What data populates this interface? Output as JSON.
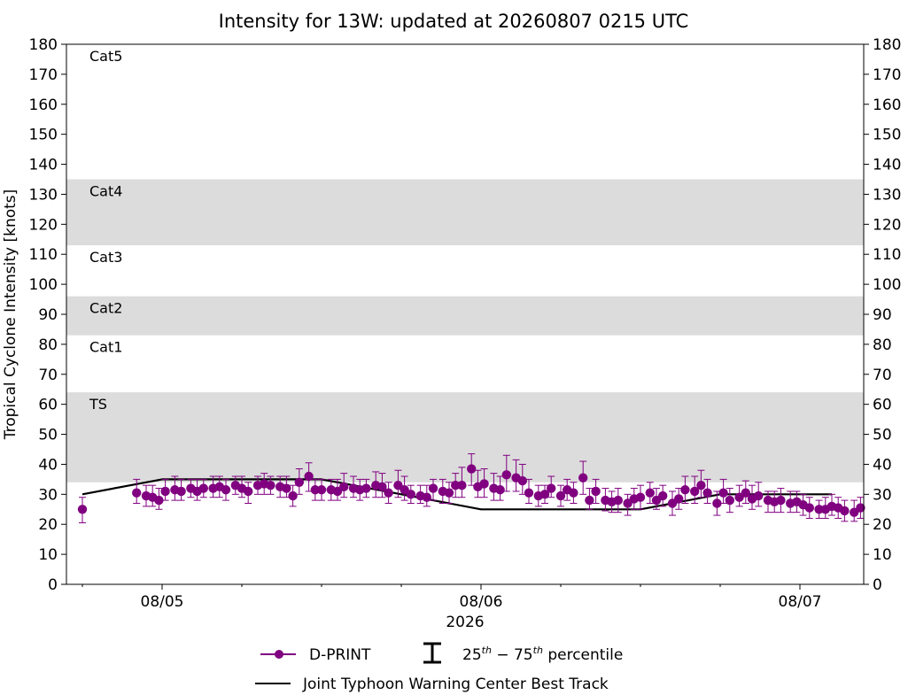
{
  "chart_data": {
    "type": "line",
    "title": "Intensity for 13W: updated at 20260807 0215 UTC",
    "xlabel": "2026",
    "ylabel": "Tropical Cyclone Intensity [knots]",
    "ylim": [
      0,
      180
    ],
    "yticks": [
      0,
      10,
      20,
      30,
      40,
      50,
      60,
      70,
      80,
      90,
      100,
      110,
      120,
      130,
      140,
      150,
      160,
      170,
      180
    ],
    "xlim_days": [
      -0.3,
      2.2
    ],
    "xticks": [
      {
        "pos": 0,
        "label": "08/05"
      },
      {
        "pos": 1,
        "label": "08/06"
      },
      {
        "pos": 2,
        "label": "08/07"
      }
    ],
    "x_unit": "days since 08/05 00:00 UTC",
    "minor_xticks": [
      -0.25,
      0.25,
      0.5,
      0.75,
      1.25,
      1.5,
      1.75,
      2.25
    ],
    "bands": [
      {
        "label": "TS",
        "from": 34,
        "to": 64,
        "shaded": true
      },
      {
        "label": "Cat1",
        "from": 64,
        "to": 83,
        "shaded": false
      },
      {
        "label": "Cat2",
        "from": 83,
        "to": 96,
        "shaded": true
      },
      {
        "label": "Cat3",
        "from": 96,
        "to": 113,
        "shaded": false
      },
      {
        "label": "Cat4",
        "from": 113,
        "to": 135,
        "shaded": true
      },
      {
        "label": "Cat5",
        "from": 135,
        "to": 180,
        "shaded": false
      }
    ],
    "band_color": "#dcdcdc",
    "series": [
      {
        "name": "D-PRINT",
        "color": "#800080",
        "marker": "circle",
        "points": [
          {
            "x": -0.25,
            "y": 25,
            "lo": 20.5,
            "hi": 29
          },
          {
            "x": -0.08,
            "y": 30.5,
            "lo": 27,
            "hi": 35
          },
          {
            "x": -0.05,
            "y": 29.5,
            "lo": 26,
            "hi": 33
          },
          {
            "x": -0.03,
            "y": 29,
            "lo": 26,
            "hi": 33
          },
          {
            "x": -0.01,
            "y": 28,
            "lo": 25,
            "hi": 32
          },
          {
            "x": 0.01,
            "y": 31,
            "lo": 28,
            "hi": 35
          },
          {
            "x": 0.04,
            "y": 31.5,
            "lo": 28,
            "hi": 36
          },
          {
            "x": 0.06,
            "y": 31,
            "lo": 28,
            "hi": 35
          },
          {
            "x": 0.09,
            "y": 32,
            "lo": 29,
            "hi": 35
          },
          {
            "x": 0.11,
            "y": 31,
            "lo": 28,
            "hi": 35
          },
          {
            "x": 0.13,
            "y": 32,
            "lo": 29,
            "hi": 35
          },
          {
            "x": 0.16,
            "y": 32,
            "lo": 29,
            "hi": 36
          },
          {
            "x": 0.18,
            "y": 32.5,
            "lo": 29,
            "hi": 36
          },
          {
            "x": 0.2,
            "y": 31.5,
            "lo": 28,
            "hi": 35
          },
          {
            "x": 0.23,
            "y": 33,
            "lo": 30,
            "hi": 36
          },
          {
            "x": 0.25,
            "y": 32,
            "lo": 29,
            "hi": 36
          },
          {
            "x": 0.27,
            "y": 31,
            "lo": 27,
            "hi": 34
          },
          {
            "x": 0.3,
            "y": 33,
            "lo": 30,
            "hi": 36
          },
          {
            "x": 0.32,
            "y": 33.5,
            "lo": 30,
            "hi": 37
          },
          {
            "x": 0.34,
            "y": 33,
            "lo": 30,
            "hi": 36
          },
          {
            "x": 0.37,
            "y": 32.5,
            "lo": 29,
            "hi": 36
          },
          {
            "x": 0.39,
            "y": 32,
            "lo": 29,
            "hi": 36
          },
          {
            "x": 0.41,
            "y": 29.5,
            "lo": 26,
            "hi": 33
          },
          {
            "x": 0.43,
            "y": 34,
            "lo": 30,
            "hi": 38.5
          },
          {
            "x": 0.46,
            "y": 36,
            "lo": 31,
            "hi": 40.5
          },
          {
            "x": 0.48,
            "y": 31.5,
            "lo": 28,
            "hi": 35
          },
          {
            "x": 0.5,
            "y": 31.5,
            "lo": 28,
            "hi": 35
          },
          {
            "x": 0.53,
            "y": 31.5,
            "lo": 28,
            "hi": 35
          },
          {
            "x": 0.55,
            "y": 31,
            "lo": 28,
            "hi": 35
          },
          {
            "x": 0.57,
            "y": 32.5,
            "lo": 29,
            "hi": 37
          },
          {
            "x": 0.6,
            "y": 32,
            "lo": 29,
            "hi": 36
          },
          {
            "x": 0.62,
            "y": 31.5,
            "lo": 28,
            "hi": 35
          },
          {
            "x": 0.64,
            "y": 32,
            "lo": 29,
            "hi": 35
          },
          {
            "x": 0.67,
            "y": 33,
            "lo": 29,
            "hi": 37.5
          },
          {
            "x": 0.69,
            "y": 32.5,
            "lo": 29,
            "hi": 37
          },
          {
            "x": 0.71,
            "y": 30.5,
            "lo": 27,
            "hi": 34
          },
          {
            "x": 0.74,
            "y": 33,
            "lo": 29,
            "hi": 38
          },
          {
            "x": 0.76,
            "y": 31.5,
            "lo": 28,
            "hi": 36
          },
          {
            "x": 0.78,
            "y": 30,
            "lo": 27,
            "hi": 33
          },
          {
            "x": 0.81,
            "y": 29.5,
            "lo": 27,
            "hi": 33
          },
          {
            "x": 0.83,
            "y": 29,
            "lo": 26,
            "hi": 33
          },
          {
            "x": 0.85,
            "y": 32,
            "lo": 28,
            "hi": 35
          },
          {
            "x": 0.88,
            "y": 31,
            "lo": 27,
            "hi": 35
          },
          {
            "x": 0.9,
            "y": 30.5,
            "lo": 27,
            "hi": 34
          },
          {
            "x": 0.92,
            "y": 33,
            "lo": 29,
            "hi": 37
          },
          {
            "x": 0.94,
            "y": 33,
            "lo": 29,
            "hi": 39
          },
          {
            "x": 0.97,
            "y": 38.5,
            "lo": 33,
            "hi": 43.5
          },
          {
            "x": 0.99,
            "y": 32.5,
            "lo": 29,
            "hi": 38
          },
          {
            "x": 1.01,
            "y": 33.5,
            "lo": 29,
            "hi": 38.5
          },
          {
            "x": 1.04,
            "y": 32,
            "lo": 28,
            "hi": 37
          },
          {
            "x": 1.06,
            "y": 31.5,
            "lo": 28,
            "hi": 36
          },
          {
            "x": 1.08,
            "y": 36.5,
            "lo": 31,
            "hi": 43
          },
          {
            "x": 1.11,
            "y": 35.5,
            "lo": 31,
            "hi": 41.5
          },
          {
            "x": 1.13,
            "y": 34.5,
            "lo": 30,
            "hi": 40
          },
          {
            "x": 1.15,
            "y": 30.5,
            "lo": 27,
            "hi": 35
          },
          {
            "x": 1.18,
            "y": 29.5,
            "lo": 26,
            "hi": 33
          },
          {
            "x": 1.2,
            "y": 30,
            "lo": 27,
            "hi": 33
          },
          {
            "x": 1.22,
            "y": 32,
            "lo": 29,
            "hi": 36
          },
          {
            "x": 1.25,
            "y": 29.5,
            "lo": 26,
            "hi": 33
          },
          {
            "x": 1.27,
            "y": 31.5,
            "lo": 28,
            "hi": 35
          },
          {
            "x": 1.29,
            "y": 30.5,
            "lo": 27,
            "hi": 34
          },
          {
            "x": 1.32,
            "y": 35.5,
            "lo": 30,
            "hi": 41
          },
          {
            "x": 1.34,
            "y": 28,
            "lo": 25,
            "hi": 32
          },
          {
            "x": 1.36,
            "y": 31,
            "lo": 27,
            "hi": 35
          },
          {
            "x": 1.39,
            "y": 28,
            "lo": 24.5,
            "hi": 32
          },
          {
            "x": 1.41,
            "y": 27.5,
            "lo": 24,
            "hi": 31
          },
          {
            "x": 1.43,
            "y": 28,
            "lo": 24,
            "hi": 32
          },
          {
            "x": 1.46,
            "y": 27,
            "lo": 23,
            "hi": 30
          },
          {
            "x": 1.48,
            "y": 28.5,
            "lo": 25,
            "hi": 32
          },
          {
            "x": 1.5,
            "y": 29,
            "lo": 25,
            "hi": 33
          },
          {
            "x": 1.53,
            "y": 30.5,
            "lo": 27,
            "hi": 34
          },
          {
            "x": 1.55,
            "y": 28,
            "lo": 25,
            "hi": 32
          },
          {
            "x": 1.57,
            "y": 29.5,
            "lo": 26,
            "hi": 33
          },
          {
            "x": 1.6,
            "y": 27,
            "lo": 23,
            "hi": 31
          },
          {
            "x": 1.62,
            "y": 28.5,
            "lo": 25,
            "hi": 32
          },
          {
            "x": 1.64,
            "y": 31.5,
            "lo": 27,
            "hi": 36
          },
          {
            "x": 1.67,
            "y": 31,
            "lo": 27,
            "hi": 36
          },
          {
            "x": 1.69,
            "y": 33,
            "lo": 29,
            "hi": 38
          },
          {
            "x": 1.71,
            "y": 30.5,
            "lo": 27,
            "hi": 35
          },
          {
            "x": 1.74,
            "y": 27,
            "lo": 23,
            "hi": 31
          },
          {
            "x": 1.76,
            "y": 30.5,
            "lo": 27,
            "hi": 35
          },
          {
            "x": 1.78,
            "y": 28,
            "lo": 24,
            "hi": 32
          },
          {
            "x": 1.81,
            "y": 29,
            "lo": 26,
            "hi": 33
          },
          {
            "x": 1.83,
            "y": 30.5,
            "lo": 27,
            "hi": 34.5
          },
          {
            "x": 1.85,
            "y": 28.5,
            "lo": 25,
            "hi": 33
          },
          {
            "x": 1.87,
            "y": 29.5,
            "lo": 26,
            "hi": 34
          },
          {
            "x": 1.9,
            "y": 28,
            "lo": 24,
            "hi": 31
          },
          {
            "x": 1.92,
            "y": 27.5,
            "lo": 24,
            "hi": 31
          },
          {
            "x": 1.94,
            "y": 28,
            "lo": 24,
            "hi": 32
          },
          {
            "x": 1.97,
            "y": 27,
            "lo": 24,
            "hi": 31
          },
          {
            "x": 1.99,
            "y": 27.5,
            "lo": 24,
            "hi": 31
          },
          {
            "x": 2.01,
            "y": 26.5,
            "lo": 23,
            "hi": 30
          },
          {
            "x": 2.03,
            "y": 25.5,
            "lo": 22,
            "hi": 29
          },
          {
            "x": 2.06,
            "y": 25,
            "lo": 22,
            "hi": 28
          },
          {
            "x": 2.08,
            "y": 25,
            "lo": 22,
            "hi": 29
          },
          {
            "x": 2.1,
            "y": 26,
            "lo": 23,
            "hi": 30
          },
          {
            "x": 2.12,
            "y": 25.5,
            "lo": 22,
            "hi": 29
          },
          {
            "x": 2.14,
            "y": 24.5,
            "lo": 21,
            "hi": 28
          },
          {
            "x": 2.17,
            "y": 24,
            "lo": 21,
            "hi": 28
          },
          {
            "x": 2.19,
            "y": 25.5,
            "lo": 22,
            "hi": 29
          }
        ]
      },
      {
        "name": "Joint Typhoon Warning Center Best Track",
        "color": "#000000",
        "points": [
          {
            "x": -0.25,
            "y": 30
          },
          {
            "x": 0.0,
            "y": 35
          },
          {
            "x": 0.5,
            "y": 35
          },
          {
            "x": 0.75,
            "y": 30
          },
          {
            "x": 1.0,
            "y": 25
          },
          {
            "x": 1.25,
            "y": 25
          },
          {
            "x": 1.5,
            "y": 25
          },
          {
            "x": 1.75,
            "y": 30
          },
          {
            "x": 2.0,
            "y": 30
          },
          {
            "x": 2.1,
            "y": 30
          }
        ]
      }
    ],
    "legend": {
      "placement": "bottom",
      "entries": [
        {
          "label": "D-PRINT",
          "kind": "marker-line",
          "color": "#800080"
        },
        {
          "label_base1": "25",
          "sup1": "th",
          "label_mid": " − 75",
          "sup2": "th",
          "label_end": " percentile",
          "kind": "errorbar",
          "color": "#000000"
        },
        {
          "label": "Joint Typhoon Warning Center Best Track",
          "kind": "line",
          "color": "#000000"
        }
      ]
    },
    "grid": false
  }
}
